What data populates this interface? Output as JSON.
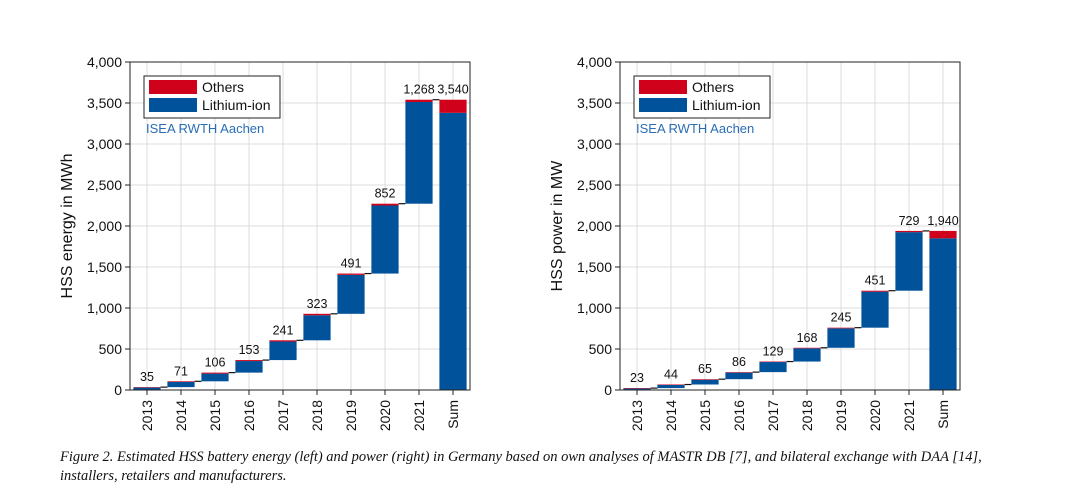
{
  "chart_data": [
    {
      "type": "bar",
      "subtype": "waterfall-stacked",
      "title": "",
      "ylabel": "HSS energy in MWh",
      "xlabel": "",
      "ylim": [
        0,
        4000
      ],
      "yticks": [
        "0",
        "500",
        "1,000",
        "1,500",
        "2,000",
        "2,500",
        "3,000",
        "3,500",
        "4,000"
      ],
      "grid": true,
      "legend_position": "top-left",
      "watermark": "ISEA RWTH Aachen",
      "categories": [
        "2013",
        "2014",
        "2015",
        "2016",
        "2017",
        "2018",
        "2019",
        "2020",
        "2021",
        "Sum"
      ],
      "series": [
        {
          "name": "Others",
          "color": "#d0021b",
          "values": [
            5,
            8,
            12,
            12,
            15,
            18,
            16,
            22,
            28,
            160
          ]
        },
        {
          "name": "Lithium-ion",
          "color": "#00529b",
          "values": [
            30,
            63,
            94,
            141,
            226,
            305,
            475,
            830,
            1240,
            3380
          ]
        }
      ],
      "totals": [
        35,
        71,
        106,
        153,
        241,
        323,
        491,
        852,
        1268,
        3540
      ],
      "total_labels": [
        "35",
        "71",
        "106",
        "153",
        "241",
        "323",
        "491",
        "852",
        "1,268",
        "3,540"
      ]
    },
    {
      "type": "bar",
      "subtype": "waterfall-stacked",
      "title": "",
      "ylabel": "HSS power in MW",
      "xlabel": "",
      "ylim": [
        0,
        4000
      ],
      "yticks": [
        "0",
        "500",
        "1,000",
        "1,500",
        "2,000",
        "2,500",
        "3,000",
        "3,500",
        "4,000"
      ],
      "grid": true,
      "legend_position": "top-left",
      "watermark": "ISEA RWTH Aachen",
      "categories": [
        "2013",
        "2014",
        "2015",
        "2016",
        "2017",
        "2018",
        "2019",
        "2020",
        "2021",
        "Sum"
      ],
      "series": [
        {
          "name": "Others",
          "color": "#d0021b",
          "values": [
            4,
            6,
            7,
            6,
            6,
            7,
            8,
            12,
            15,
            90
          ]
        },
        {
          "name": "Lithium-ion",
          "color": "#00529b",
          "values": [
            19,
            38,
            58,
            80,
            123,
            161,
            237,
            439,
            714,
            1850
          ]
        }
      ],
      "totals": [
        23,
        44,
        65,
        86,
        129,
        168,
        245,
        451,
        729,
        1940
      ],
      "total_labels": [
        "23",
        "44",
        "65",
        "86",
        "129",
        "168",
        "245",
        "451",
        "729",
        "1,940"
      ]
    }
  ],
  "caption": "Figure 2. Estimated HSS battery energy (left) and power (right) in Germany based on own analyses of MASTR DB [7], and bilateral exchange with DAA [14], installers, retailers and manufacturers."
}
